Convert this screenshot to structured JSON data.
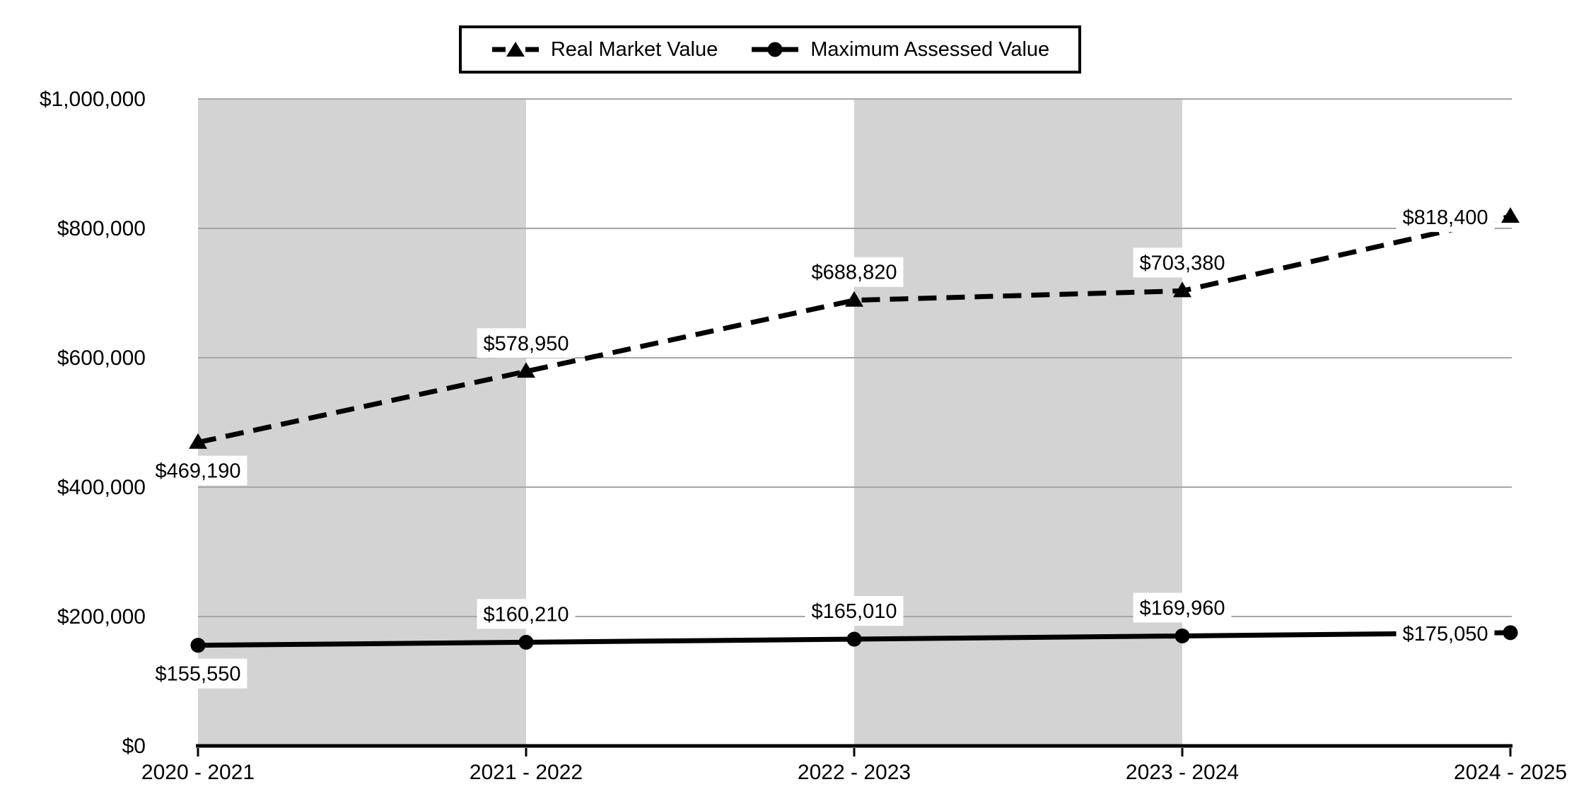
{
  "chart_data": {
    "type": "line",
    "categories": [
      "2020 - 2021",
      "2021 - 2022",
      "2022 - 2023",
      "2023 - 2024",
      "2024 - 2025"
    ],
    "series": [
      {
        "name": "Real Market Value",
        "values": [
          469190,
          578950,
          688820,
          703380,
          818400
        ],
        "labels": [
          "$469,190",
          "$578,950",
          "$688,820",
          "$703,380",
          "$818,400"
        ],
        "line_style": "dashed",
        "marker": "triangle",
        "label_positions": [
          "below",
          "above",
          "above",
          "above",
          "left"
        ]
      },
      {
        "name": "Maximum Assessed Value",
        "values": [
          155550,
          160210,
          165010,
          169960,
          175050
        ],
        "labels": [
          "$155,550",
          "$160,210",
          "$165,010",
          "$169,960",
          "$175,050"
        ],
        "line_style": "solid",
        "marker": "circle",
        "label_positions": [
          "below",
          "above",
          "above",
          "above",
          "left"
        ]
      }
    ],
    "y_axis": {
      "min": 0,
      "max": 1000000,
      "tick_step": 200000,
      "tick_labels": [
        "$0",
        "$200,000",
        "$400,000",
        "$600,000",
        "$800,000",
        "$1,000,000"
      ]
    },
    "x_axis": {
      "tick_labels": [
        "2020 - 2021",
        "2021 - 2022",
        "2022 - 2023",
        "2023 - 2024",
        "2024 - 2025"
      ]
    },
    "legend_position": "top-center",
    "grid": true,
    "shaded_bands": {
      "category_ranges": [
        [
          0,
          1
        ],
        [
          2,
          3
        ]
      ],
      "color": "#d3d3d3"
    },
    "colors": {
      "series": "#000000",
      "gridline": "#a6a6a6",
      "axis": "#000000",
      "background": "#ffffff",
      "label_background": "#ffffff",
      "text": "#000000"
    }
  }
}
